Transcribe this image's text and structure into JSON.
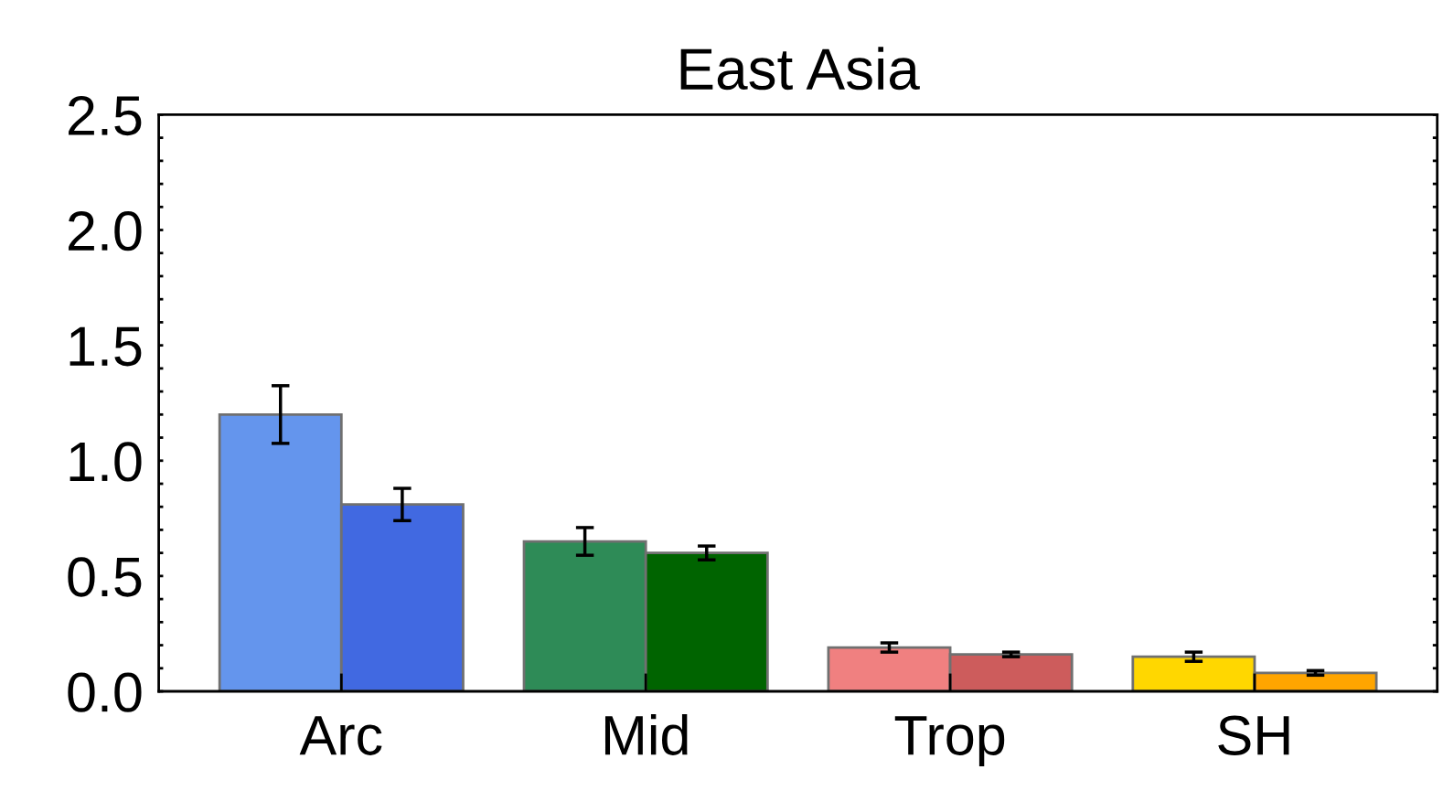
{
  "chart_data": {
    "type": "bar",
    "title": "East Asia",
    "categories": [
      "Arc",
      "Mid",
      "Trop",
      "SH"
    ],
    "series": [
      {
        "colors": [
          "#6495ed",
          "#2e8b57",
          "#f08080",
          "#ffd700"
        ],
        "values": [
          1.2,
          0.65,
          0.19,
          0.15
        ],
        "errors": [
          0.125,
          0.06,
          0.02,
          0.02
        ]
      },
      {
        "colors": [
          "#4169e1",
          "#006400",
          "#cd5c5c",
          "#ffa500"
        ],
        "values": [
          0.81,
          0.6,
          0.16,
          0.08
        ],
        "errors": [
          0.07,
          0.03,
          0.01,
          0.01
        ]
      }
    ],
    "ylim": [
      0,
      2.5
    ],
    "yticks": [
      {
        "value": 0,
        "label": "0.0"
      },
      {
        "value": 0.1,
        "label": null
      },
      {
        "value": 0.2,
        "label": null
      },
      {
        "value": 0.3,
        "label": null
      },
      {
        "value": 0.4,
        "label": null
      },
      {
        "value": 0.5,
        "label": "0.5"
      },
      {
        "value": 0.6,
        "label": null
      },
      {
        "value": 0.7,
        "label": null
      },
      {
        "value": 0.8,
        "label": null
      },
      {
        "value": 0.9,
        "label": null
      },
      {
        "value": 1.0,
        "label": "1.0"
      },
      {
        "value": 1.1,
        "label": null
      },
      {
        "value": 1.2,
        "label": null
      },
      {
        "value": 1.3,
        "label": null
      },
      {
        "value": 1.4,
        "label": null
      },
      {
        "value": 1.5,
        "label": "1.5"
      },
      {
        "value": 1.6,
        "label": null
      },
      {
        "value": 1.7,
        "label": null
      },
      {
        "value": 1.8,
        "label": null
      },
      {
        "value": 1.9,
        "label": null
      },
      {
        "value": 2.0,
        "label": "2.0"
      },
      {
        "value": 2.1,
        "label": null
      },
      {
        "value": 2.2,
        "label": null
      },
      {
        "value": 2.3,
        "label": null
      },
      {
        "value": 2.4,
        "label": null
      },
      {
        "value": 2.5,
        "label": "2.5"
      }
    ],
    "grid": false,
    "legend": false
  }
}
